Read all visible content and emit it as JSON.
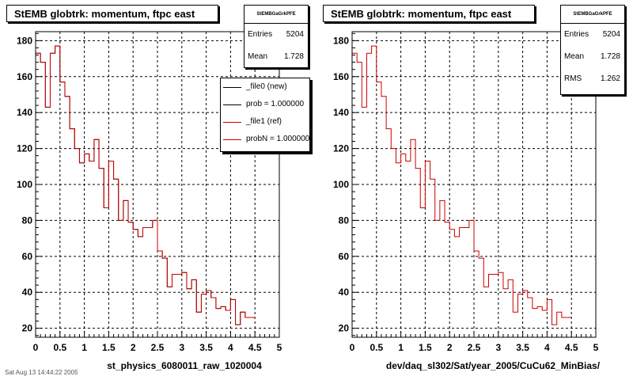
{
  "chart_data": [
    {
      "type": "histogram",
      "title": "StEMB globtrk: momentum, ftpc east",
      "xlabel": "st_physics_6080011_raw_1020004",
      "ylabel": "",
      "xlim": [
        0,
        5
      ],
      "ylim": [
        15,
        185
      ],
      "yticks": [
        20,
        40,
        60,
        80,
        100,
        120,
        140,
        160,
        180
      ],
      "xticks": [
        "0",
        "0.5",
        "1",
        "1.5",
        "2",
        "2.5",
        "3",
        "3.5",
        "4",
        "4.5",
        "5"
      ],
      "bin_width": 0.1,
      "grid": true,
      "series": [
        {
          "name": "_file0 (new)",
          "color": "#000000",
          "values": [
            173,
            168,
            143,
            173,
            177,
            157,
            149,
            131,
            120,
            112,
            117,
            113,
            125,
            109,
            87,
            113,
            103,
            80,
            91,
            79,
            75,
            71,
            76,
            76,
            80,
            63,
            59,
            43,
            50,
            50,
            51,
            42,
            47,
            29,
            39,
            41,
            37,
            31,
            32,
            30,
            36,
            22,
            29,
            26,
            26
          ]
        },
        {
          "name": "_file1 (ref)",
          "color": "#cc0000",
          "values": [
            173,
            168,
            143,
            173,
            177,
            157,
            149,
            131,
            120,
            112,
            117,
            113,
            125,
            109,
            87,
            113,
            103,
            80,
            91,
            79,
            75,
            71,
            76,
            76,
            80,
            63,
            59,
            43,
            50,
            50,
            51,
            42,
            47,
            29,
            39,
            41,
            37,
            31,
            32,
            30,
            36,
            22,
            29,
            26,
            26
          ]
        }
      ],
      "stats": {
        "name": "StEMBGaGrkPFE",
        "entries_label": "Entries",
        "entries": "5204",
        "mean_label": "Mean",
        "mean": "1.728"
      },
      "legend": {
        "placement": "top-right",
        "entries": [
          "_file0 (new)",
          "prob = 1.000000",
          "_file1 (ref)",
          "probN = 1.000000"
        ]
      }
    },
    {
      "type": "histogram",
      "title": "StEMB globtrk: momentum, ftpc east",
      "xlabel": "dev/daq_sl302/Sat/year_2005/CuCu62_MinBias/",
      "ylabel": "",
      "xlim": [
        0,
        5
      ],
      "ylim": [
        15,
        185
      ],
      "yticks": [
        20,
        40,
        60,
        80,
        100,
        120,
        140,
        160,
        180
      ],
      "xticks": [
        "0",
        "0.5",
        "1",
        "1.5",
        "2",
        "2.5",
        "3",
        "3.5",
        "4",
        "4.5",
        "5"
      ],
      "bin_width": 0.1,
      "grid": true,
      "series": [
        {
          "name": "_file1 (ref)",
          "color": "#cc0000",
          "values": [
            173,
            168,
            143,
            173,
            177,
            157,
            149,
            131,
            120,
            112,
            117,
            113,
            125,
            109,
            87,
            113,
            103,
            80,
            91,
            79,
            75,
            71,
            76,
            76,
            80,
            63,
            59,
            43,
            50,
            50,
            51,
            42,
            47,
            29,
            39,
            41,
            37,
            31,
            32,
            30,
            36,
            22,
            29,
            26,
            26
          ]
        }
      ],
      "stats": {
        "name": "StEMBGaGrkPFE",
        "entries_label": "Entries",
        "entries": "5204",
        "mean_label": "Mean",
        "mean": "1.728",
        "rms_label": "RMS",
        "rms": "1.262"
      }
    }
  ],
  "footer_text": "Sat Aug 13 14:44:22 2005"
}
